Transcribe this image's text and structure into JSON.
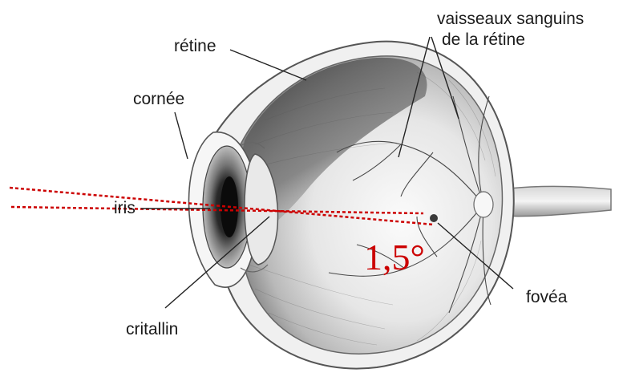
{
  "labels": {
    "retine": "rétine",
    "cornee": "cornée",
    "iris": "iris",
    "cristallin": "critallin",
    "vaisseaux_line1": "vaisseaux sanguins",
    "vaisseaux_line2": "de la rétine",
    "fovea": "fovéa"
  },
  "angle": {
    "text": "1,5°",
    "value_degrees": 1.5
  },
  "colors": {
    "sight_line": "#cc0000",
    "angle_text": "#cc0000",
    "outline": "#555555",
    "leader": "#222222"
  }
}
